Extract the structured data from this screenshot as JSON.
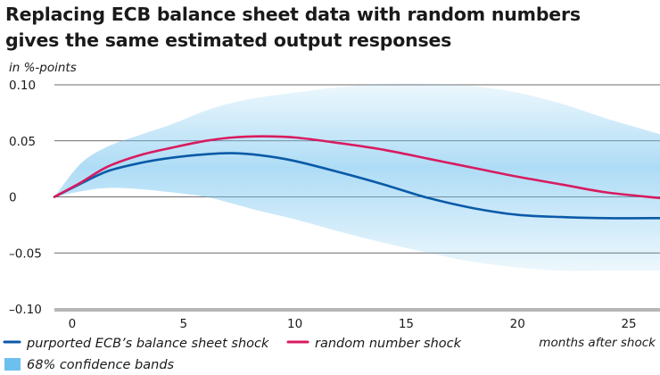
{
  "title": {
    "line1": "Replacing ECB balance sheet data with random numbers",
    "line2": "gives the same estimated output responses"
  },
  "chart_data": {
    "type": "line",
    "ylabel": "in %-points",
    "xlabel": "months after shock",
    "xlim": [
      -0.8,
      26.4
    ],
    "ylim": [
      -0.1,
      0.1
    ],
    "xticks": [
      0,
      5,
      10,
      15,
      20,
      25
    ],
    "xtick_labels": [
      "0",
      "5",
      "10",
      "15",
      "20",
      "25"
    ],
    "yticks": [
      0.1,
      0.05,
      0,
      -0.05,
      -0.1
    ],
    "ytick_labels": [
      "0.10",
      "0.05",
      "0",
      "–0.05",
      "–0.10"
    ],
    "grid": "horizontal",
    "x": [
      -0.8,
      0.4,
      1.6,
      3,
      4.5,
      6,
      7.2,
      8.5,
      10,
      12,
      14,
      16,
      18,
      20,
      22,
      24,
      26.4
    ],
    "series": [
      {
        "name": "purported ECB’s balance sheet shock",
        "color": "#0a5aa8",
        "values": [
          0,
          0.012,
          0.023,
          0.03,
          0.035,
          0.038,
          0.039,
          0.037,
          0.032,
          0.022,
          0.011,
          -0.001,
          -0.01,
          -0.016,
          -0.018,
          -0.019,
          -0.019
        ]
      },
      {
        "name": "random number shock",
        "color": "#d81b60",
        "values": [
          0,
          0.013,
          0.027,
          0.037,
          0.044,
          0.05,
          0.053,
          0.054,
          0.053,
          0.048,
          0.042,
          0.034,
          0.026,
          0.018,
          0.011,
          0.004,
          -0.001
        ]
      }
    ],
    "band": {
      "name": "68% confidence bands",
      "color": "#6cc0ee",
      "upper": [
        0,
        0.03,
        0.045,
        0.055,
        0.065,
        0.077,
        0.084,
        0.089,
        0.093,
        0.098,
        0.101,
        0.101,
        0.099,
        0.093,
        0.083,
        0.07,
        0.056
      ],
      "lower": [
        0,
        0.005,
        0.008,
        0.007,
        0.004,
        0.0,
        -0.006,
        -0.013,
        -0.02,
        -0.031,
        -0.041,
        -0.05,
        -0.058,
        -0.063,
        -0.066,
        -0.066,
        -0.066
      ]
    },
    "legend": {
      "position": "bottom",
      "series1_label": "purported ECB’s balance sheet shock",
      "series2_label": "random number shock",
      "band_label": "68% confidence bands"
    }
  }
}
